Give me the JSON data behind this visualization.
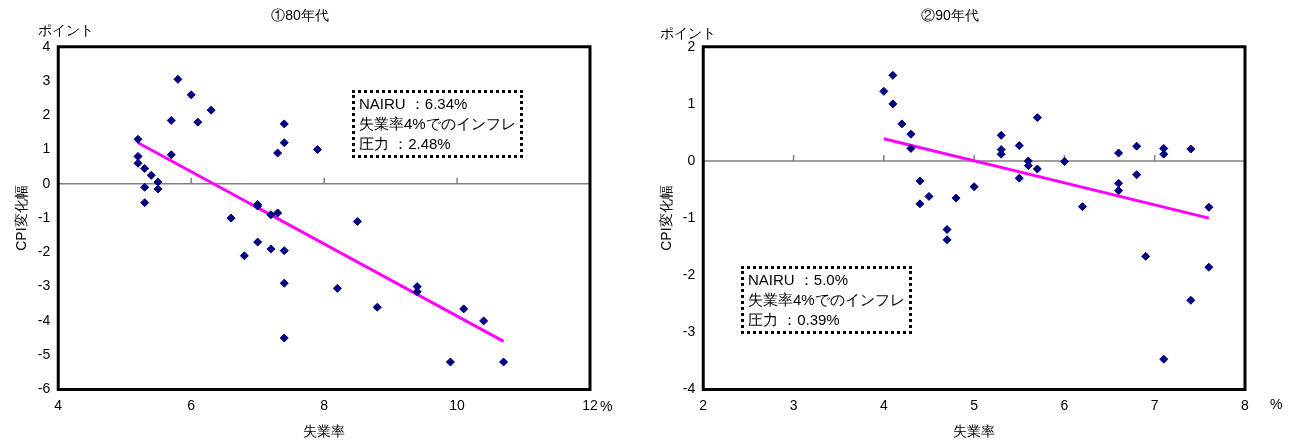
{
  "chart_data": [
    {
      "type": "scatter",
      "title": "①80年代",
      "xlabel": "失業率",
      "ylabel": "CPI変化幅",
      "xlim": [
        4,
        12
      ],
      "xticks": [
        4,
        6,
        8,
        10,
        12
      ],
      "ylim": [
        -6,
        4
      ],
      "yticks": [
        -6,
        -5,
        -4,
        -3,
        -2,
        -1,
        0,
        1,
        2,
        3,
        4
      ],
      "grid": false,
      "legend": false,
      "ref_lines": [
        {
          "axis": "y",
          "value": 0,
          "color": "#808080"
        }
      ],
      "annotations": [
        "NAIRU ：6.34%",
        "失業率4%でのインフレ",
        "圧力 ：2.48%",
        "ポイント",
        "%"
      ],
      "series": [
        {
          "marker": "diamond",
          "color": "#000080",
          "x": [
            5.2,
            5.2,
            5.2,
            5.3,
            5.3,
            5.3,
            5.4,
            5.5,
            5.5,
            5.7,
            5.7,
            5.8,
            6.0,
            6.1,
            6.3,
            6.6,
            6.8,
            7.0,
            7.0,
            7.0,
            7.2,
            7.2,
            7.3,
            7.3,
            7.4,
            7.4,
            7.4,
            7.4,
            7.4,
            7.9,
            8.2,
            8.5,
            8.8,
            9.4,
            9.4,
            9.9,
            10.1,
            10.4,
            10.7
          ],
          "values": [
            1.3,
            0.8,
            0.6,
            0.45,
            -0.1,
            -0.55,
            0.25,
            0.05,
            -0.15,
            0.85,
            1.85,
            3.05,
            2.6,
            1.8,
            2.15,
            -1.0,
            -2.1,
            -0.6,
            -0.65,
            -1.7,
            -0.9,
            -1.9,
            -0.85,
            0.9,
            1.75,
            1.2,
            -1.95,
            -2.9,
            -4.5,
            1.0,
            -3.05,
            -1.1,
            -3.6,
            -3.0,
            -3.15,
            -5.2,
            -3.65,
            -4.0,
            -5.2
          ]
        },
        {
          "type": "line",
          "marker": "none",
          "color": "#ff00ff",
          "x": [
            5.2,
            10.7
          ],
          "values": [
            1.2,
            -4.6
          ]
        }
      ]
    },
    {
      "type": "scatter",
      "title": "②90年代",
      "xlabel": "失業率",
      "ylabel": "CPI変化幅",
      "xlim": [
        2,
        8
      ],
      "xticks": [
        2,
        3,
        4,
        5,
        6,
        7,
        8
      ],
      "ylim": [
        -4,
        2
      ],
      "yticks": [
        -4,
        -3,
        -2,
        -1,
        0,
        1,
        2
      ],
      "grid": false,
      "legend": false,
      "ref_lines": [
        {
          "axis": "y",
          "value": 0,
          "color": "#808080"
        }
      ],
      "annotations": [
        "NAIRU ：5.0%",
        "失業率4%でのインフレ",
        "圧力 ：0.39%",
        "ポイント",
        "%"
      ],
      "series": [
        {
          "marker": "diamond",
          "color": "#000080",
          "x": [
            4.0,
            4.1,
            4.1,
            4.2,
            4.3,
            4.3,
            4.4,
            4.4,
            4.5,
            4.7,
            4.7,
            4.8,
            5.0,
            5.3,
            5.3,
            5.3,
            5.5,
            5.5,
            5.6,
            5.6,
            5.7,
            5.7,
            6.0,
            6.2,
            6.6,
            6.6,
            6.6,
            6.8,
            6.8,
            6.9,
            7.1,
            7.1,
            7.1,
            7.4,
            7.4,
            7.6,
            7.6
          ],
          "values": [
            1.22,
            1.5,
            1.0,
            0.65,
            0.47,
            0.22,
            -0.35,
            -0.75,
            -0.62,
            -1.2,
            -1.38,
            -0.65,
            -0.45,
            0.45,
            0.2,
            0.12,
            0.27,
            -0.3,
            0.0,
            -0.08,
            0.76,
            -0.14,
            -0.01,
            -0.8,
            0.14,
            -0.39,
            -0.52,
            0.26,
            -0.24,
            -1.67,
            0.22,
            0.12,
            -3.47,
            0.21,
            -2.44,
            -0.81,
            -1.86
          ]
        },
        {
          "type": "line",
          "marker": "none",
          "color": "#ff00ff",
          "x": [
            4.0,
            7.6
          ],
          "values": [
            0.39,
            -1.0
          ]
        }
      ]
    }
  ]
}
